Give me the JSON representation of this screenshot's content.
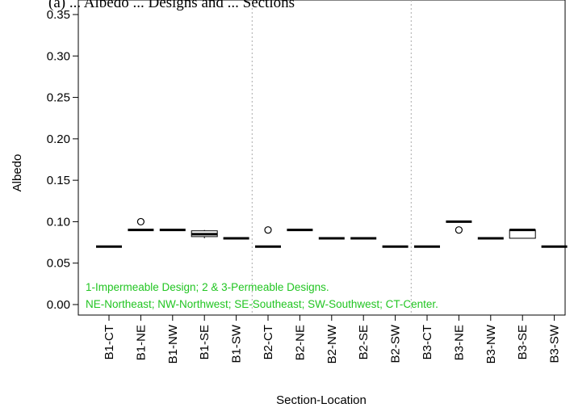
{
  "chart_data": {
    "type": "box",
    "title": "(a) ... Albedo ... Designs and ... Sections",
    "xlabel": "Section-Location",
    "ylabel": "Albedo",
    "ylim": [
      0.0,
      0.35
    ],
    "yticks": [
      "0.00",
      "0.05",
      "0.10",
      "0.15",
      "0.20",
      "0.25",
      "0.30",
      "0.35"
    ],
    "categories": [
      "B1-CT",
      "B1-NE",
      "B1-NW",
      "B1-SE",
      "B1-SW",
      "B2-CT",
      "B2-NE",
      "B2-NW",
      "B2-SE",
      "B2-SW",
      "B3-CT",
      "B3-NE",
      "B3-NW",
      "B3-SE",
      "B3-SW"
    ],
    "boxes": [
      {
        "category": "B1-CT",
        "min": 0.07,
        "q1": 0.07,
        "median": 0.07,
        "q3": 0.07,
        "max": 0.07,
        "outliers": []
      },
      {
        "category": "B1-NE",
        "min": 0.09,
        "q1": 0.09,
        "median": 0.09,
        "q3": 0.09,
        "max": 0.09,
        "outliers": [
          0.1
        ]
      },
      {
        "category": "B1-NW",
        "min": 0.09,
        "q1": 0.09,
        "median": 0.09,
        "q3": 0.09,
        "max": 0.09,
        "outliers": []
      },
      {
        "category": "B1-SE",
        "min": 0.08,
        "q1": 0.082,
        "median": 0.085,
        "q3": 0.089,
        "max": 0.09,
        "outliers": []
      },
      {
        "category": "B1-SW",
        "min": 0.08,
        "q1": 0.08,
        "median": 0.08,
        "q3": 0.08,
        "max": 0.08,
        "outliers": []
      },
      {
        "category": "B2-CT",
        "min": 0.07,
        "q1": 0.07,
        "median": 0.07,
        "q3": 0.07,
        "max": 0.07,
        "outliers": [
          0.09
        ]
      },
      {
        "category": "B2-NE",
        "min": 0.09,
        "q1": 0.09,
        "median": 0.09,
        "q3": 0.09,
        "max": 0.09,
        "outliers": []
      },
      {
        "category": "B2-NW",
        "min": 0.08,
        "q1": 0.08,
        "median": 0.08,
        "q3": 0.08,
        "max": 0.08,
        "outliers": []
      },
      {
        "category": "B2-SE",
        "min": 0.08,
        "q1": 0.08,
        "median": 0.08,
        "q3": 0.08,
        "max": 0.08,
        "outliers": []
      },
      {
        "category": "B2-SW",
        "min": 0.07,
        "q1": 0.07,
        "median": 0.07,
        "q3": 0.07,
        "max": 0.07,
        "outliers": []
      },
      {
        "category": "B3-CT",
        "min": 0.07,
        "q1": 0.07,
        "median": 0.07,
        "q3": 0.07,
        "max": 0.07,
        "outliers": []
      },
      {
        "category": "B3-NE",
        "min": 0.1,
        "q1": 0.1,
        "median": 0.1,
        "q3": 0.1,
        "max": 0.1,
        "outliers": [
          0.09
        ]
      },
      {
        "category": "B3-NW",
        "min": 0.08,
        "q1": 0.08,
        "median": 0.08,
        "q3": 0.08,
        "max": 0.08,
        "outliers": []
      },
      {
        "category": "B3-SE",
        "min": 0.08,
        "q1": 0.08,
        "median": 0.09,
        "q3": 0.09,
        "max": 0.09,
        "outliers": []
      },
      {
        "category": "B3-SW",
        "min": 0.07,
        "q1": 0.07,
        "median": 0.07,
        "q3": 0.07,
        "max": 0.07,
        "outliers": []
      }
    ],
    "group_dividers_after": [
      "B1-SW",
      "B2-SW"
    ],
    "annotations": [
      {
        "text": "1-Impermeable Design; 2 & 3-Permeable Designs.",
        "color": "#22c522"
      },
      {
        "text": "NE-Northeast; NW-Northwest; SE-Southeast; SW-Southwest; CT-Center.",
        "color": "#22c522"
      }
    ],
    "grid": false
  }
}
